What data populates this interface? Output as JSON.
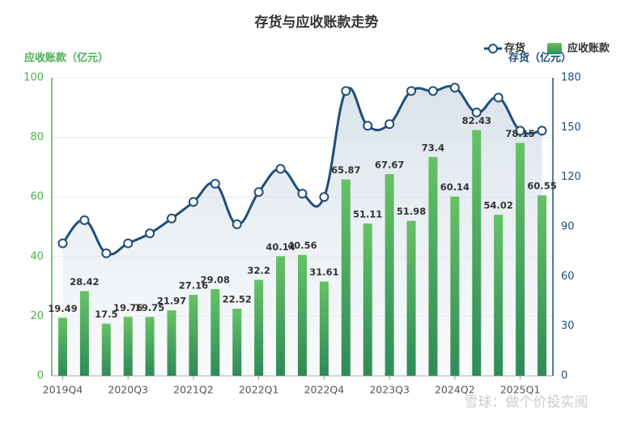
{
  "chart_data": {
    "type": "combo",
    "title": "存货与应收账款走势",
    "y_label": "应收账款（亿元）",
    "y2_label": "存货（亿元）",
    "watermark": "雪球：做个价投实阅",
    "categories": [
      "2019Q4",
      null,
      null,
      "2020Q3",
      null,
      null,
      "2021Q2",
      null,
      null,
      "2022Q1",
      null,
      null,
      "2022Q4",
      null,
      null,
      "2023Q3",
      null,
      null,
      "2024Q2",
      null,
      null,
      "2025Q1",
      null
    ],
    "series": [
      {
        "name": "存货",
        "type": "line",
        "axis": "y2",
        "color": "#1f4e79",
        "values": [
          80,
          94,
          74,
          80,
          86,
          95,
          105,
          116,
          91.5,
          111,
          125,
          110,
          108,
          172,
          151,
          152,
          172,
          172,
          174,
          159,
          168,
          148,
          148
        ]
      },
      {
        "name": "应收账款",
        "type": "bar",
        "color": "#4caf50",
        "values": [
          19.49,
          28.42,
          17.5,
          19.76,
          19.75,
          21.97,
          27.16,
          29.08,
          22.52,
          32.2,
          40.14,
          40.56,
          31.61,
          65.87,
          51.11,
          67.67,
          51.98,
          73.4,
          60.14,
          82.43,
          54.02,
          78.15,
          60.55
        ]
      }
    ],
    "ylim": [
      0,
      100
    ],
    "yticks": [
      0,
      20,
      40,
      60,
      80,
      100
    ],
    "y2lim": [
      0,
      180
    ],
    "y2ticks": [
      0,
      30,
      60,
      90,
      120,
      150,
      180
    ],
    "legend": "top-right",
    "grid": true
  }
}
